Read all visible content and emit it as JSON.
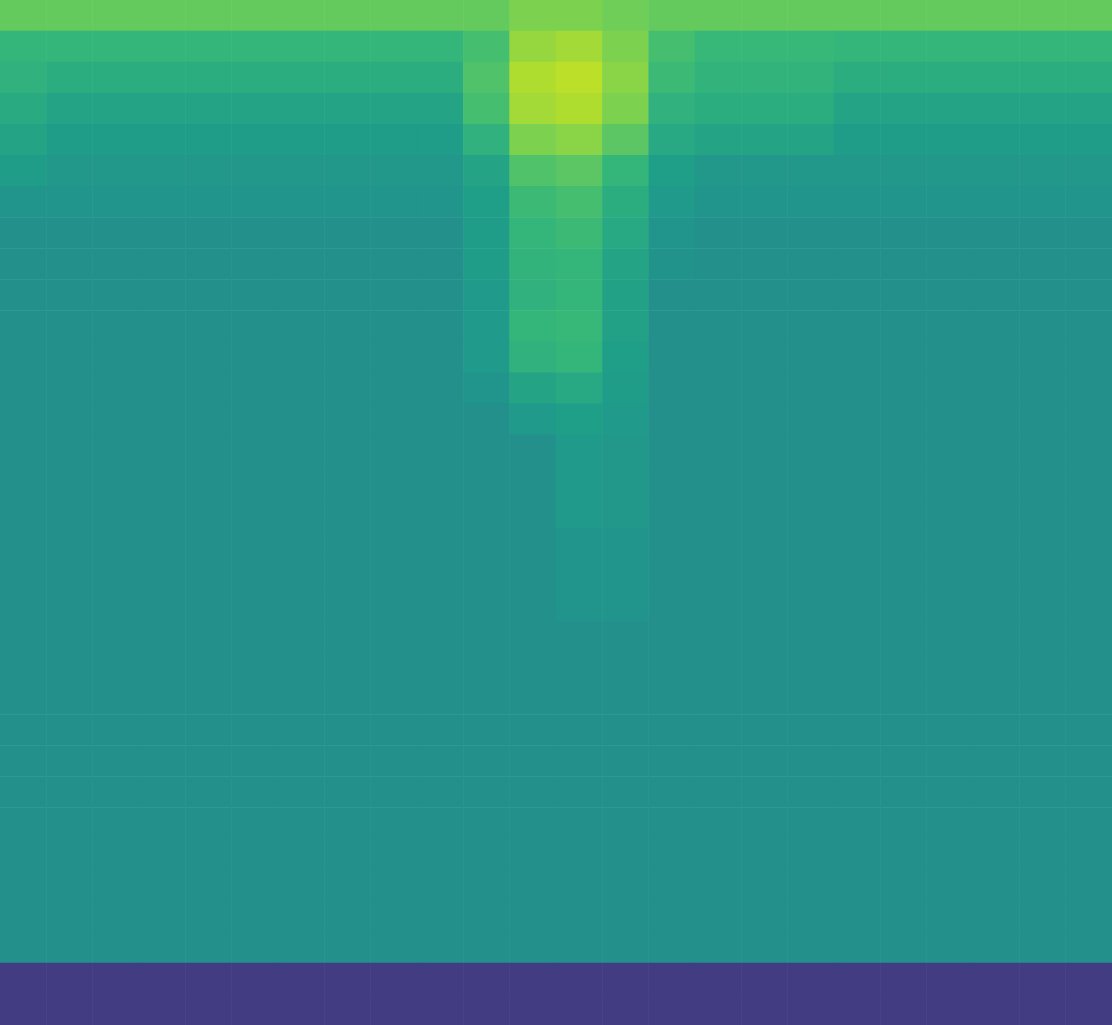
{
  "chart_data": {
    "type": "heatmap",
    "tick_labels": false,
    "zlim": [
      0,
      100
    ],
    "z": [
      [
        76,
        76,
        76,
        76,
        76,
        76,
        76,
        76,
        76,
        76,
        76,
        80,
        80,
        78,
        76,
        76,
        76,
        76,
        76,
        76,
        76,
        76,
        76,
        76
      ],
      [
        66,
        66,
        66,
        66,
        66,
        66,
        66,
        66,
        66,
        66,
        70,
        84,
        86,
        80,
        70,
        67,
        67,
        67,
        66,
        66,
        66,
        66,
        66,
        66
      ],
      [
        64,
        62,
        62,
        62,
        62,
        62,
        62,
        62,
        62,
        62,
        72,
        88,
        90,
        82,
        68,
        65,
        65,
        65,
        62,
        62,
        62,
        62,
        62,
        62
      ],
      [
        61,
        58,
        58,
        58,
        58,
        58,
        58,
        58,
        58,
        58,
        70,
        86,
        88,
        80,
        64,
        62,
        62,
        62,
        58,
        58,
        58,
        58,
        58,
        58
      ],
      [
        58,
        55,
        55,
        55,
        55,
        55,
        55,
        55,
        55,
        55,
        64,
        80,
        82,
        74,
        60,
        58,
        58,
        58,
        55,
        55,
        55,
        55,
        55,
        55
      ],
      [
        55,
        53,
        53,
        53,
        53,
        53,
        53,
        53,
        53,
        53,
        58,
        72,
        74,
        66,
        56,
        53,
        53,
        53,
        53,
        53,
        53,
        53,
        53,
        53
      ],
      [
        52,
        52,
        52,
        52,
        52,
        52,
        52,
        52,
        52,
        52,
        56,
        68,
        70,
        62,
        54,
        52,
        52,
        52,
        52,
        52,
        52,
        52,
        52,
        52
      ],
      [
        50,
        50,
        50,
        50,
        50,
        50,
        50,
        50,
        50,
        50,
        55,
        66,
        68,
        60,
        52,
        50,
        50,
        50,
        50,
        50,
        50,
        50,
        50,
        50
      ],
      [
        50,
        50,
        50,
        50,
        50,
        50,
        50,
        50,
        50,
        50,
        55,
        65,
        66,
        58,
        51,
        50,
        50,
        50,
        50,
        50,
        50,
        50,
        50,
        50
      ],
      [
        50,
        50,
        50,
        50,
        50,
        50,
        50,
        50,
        50,
        50,
        54,
        64,
        66,
        57,
        50,
        50,
        50,
        50,
        50,
        50,
        50,
        50,
        50,
        50
      ],
      [
        50,
        50,
        50,
        50,
        50,
        50,
        50,
        50,
        50,
        50,
        54,
        66,
        67,
        57,
        50,
        50,
        50,
        50,
        50,
        50,
        50,
        50,
        50,
        50
      ],
      [
        50,
        50,
        50,
        50,
        50,
        50,
        50,
        50,
        50,
        50,
        54,
        64,
        66,
        56,
        50,
        50,
        50,
        50,
        50,
        50,
        50,
        50,
        50,
        50
      ],
      [
        50,
        50,
        50,
        50,
        50,
        50,
        50,
        50,
        50,
        50,
        52,
        58,
        60,
        55,
        50,
        50,
        50,
        50,
        50,
        50,
        50,
        50,
        50,
        50
      ],
      [
        50,
        50,
        50,
        50,
        50,
        50,
        50,
        50,
        50,
        50,
        50,
        54,
        56,
        54,
        50,
        50,
        50,
        50,
        50,
        50,
        50,
        50,
        50,
        50
      ],
      [
        50,
        50,
        50,
        50,
        50,
        50,
        50,
        50,
        50,
        50,
        50,
        50,
        54,
        53,
        50,
        50,
        50,
        50,
        50,
        50,
        50,
        50,
        50,
        50
      ],
      [
        50,
        50,
        50,
        50,
        50,
        50,
        50,
        50,
        50,
        50,
        50,
        50,
        54,
        53,
        50,
        50,
        50,
        50,
        50,
        50,
        50,
        50,
        50,
        50
      ],
      [
        50,
        50,
        50,
        50,
        50,
        50,
        50,
        50,
        50,
        50,
        50,
        50,
        54,
        53,
        50,
        50,
        50,
        50,
        50,
        50,
        50,
        50,
        50,
        50
      ],
      [
        50,
        50,
        50,
        50,
        50,
        50,
        50,
        50,
        50,
        50,
        50,
        50,
        52,
        52,
        50,
        50,
        50,
        50,
        50,
        50,
        50,
        50,
        50,
        50
      ],
      [
        50,
        50,
        50,
        50,
        50,
        50,
        50,
        50,
        50,
        50,
        50,
        50,
        52,
        52,
        50,
        50,
        50,
        50,
        50,
        50,
        50,
        50,
        50,
        50
      ],
      [
        50,
        50,
        50,
        50,
        50,
        50,
        50,
        50,
        50,
        50,
        50,
        50,
        52,
        52,
        50,
        50,
        50,
        50,
        50,
        50,
        50,
        50,
        50,
        50
      ],
      [
        50,
        50,
        50,
        50,
        50,
        50,
        50,
        50,
        50,
        50,
        50,
        50,
        50,
        50,
        50,
        50,
        50,
        50,
        50,
        50,
        50,
        50,
        50,
        50
      ],
      [
        50,
        50,
        50,
        50,
        50,
        50,
        50,
        50,
        50,
        50,
        50,
        50,
        50,
        50,
        50,
        50,
        50,
        50,
        50,
        50,
        50,
        50,
        50,
        50
      ],
      [
        50,
        50,
        50,
        50,
        50,
        50,
        50,
        50,
        50,
        50,
        50,
        50,
        50,
        50,
        50,
        50,
        50,
        50,
        50,
        50,
        50,
        50,
        50,
        50
      ],
      [
        50,
        50,
        50,
        50,
        50,
        50,
        50,
        50,
        50,
        50,
        50,
        50,
        50,
        50,
        50,
        50,
        50,
        50,
        50,
        50,
        50,
        50,
        50,
        50
      ],
      [
        50,
        50,
        50,
        50,
        50,
        50,
        50,
        50,
        50,
        50,
        50,
        50,
        50,
        50,
        50,
        50,
        50,
        50,
        50,
        50,
        50,
        50,
        50,
        50
      ],
      [
        50,
        50,
        50,
        50,
        50,
        50,
        50,
        50,
        50,
        50,
        50,
        50,
        50,
        50,
        50,
        50,
        50,
        50,
        50,
        50,
        50,
        50,
        50,
        50
      ],
      [
        50,
        50,
        50,
        50,
        50,
        50,
        50,
        50,
        50,
        50,
        50,
        50,
        50,
        50,
        50,
        50,
        50,
        50,
        50,
        50,
        50,
        50,
        50,
        50
      ],
      [
        50,
        50,
        50,
        50,
        50,
        50,
        50,
        50,
        50,
        50,
        50,
        50,
        50,
        50,
        50,
        50,
        50,
        50,
        50,
        50,
        50,
        50,
        50,
        50
      ],
      [
        50,
        50,
        50,
        50,
        50,
        50,
        50,
        50,
        50,
        50,
        50,
        50,
        50,
        50,
        50,
        50,
        50,
        50,
        50,
        50,
        50,
        50,
        50,
        50
      ],
      [
        50,
        50,
        50,
        50,
        50,
        50,
        50,
        50,
        50,
        50,
        50,
        50,
        50,
        50,
        50,
        50,
        50,
        50,
        50,
        50,
        50,
        50,
        50,
        50
      ],
      [
        50,
        50,
        50,
        50,
        50,
        50,
        50,
        50,
        50,
        50,
        50,
        50,
        50,
        50,
        50,
        50,
        50,
        50,
        50,
        50,
        50,
        50,
        50,
        50
      ],
      [
        18,
        18,
        18,
        18,
        18,
        18,
        18,
        18,
        18,
        18,
        18,
        18,
        18,
        18,
        18,
        18,
        18,
        18,
        18,
        18,
        18,
        18,
        18,
        18
      ],
      [
        18,
        18,
        18,
        18,
        18,
        18,
        18,
        18,
        18,
        18,
        18,
        18,
        18,
        18,
        18,
        18,
        18,
        18,
        18,
        18,
        18,
        18,
        18,
        18
      ]
    ]
  }
}
